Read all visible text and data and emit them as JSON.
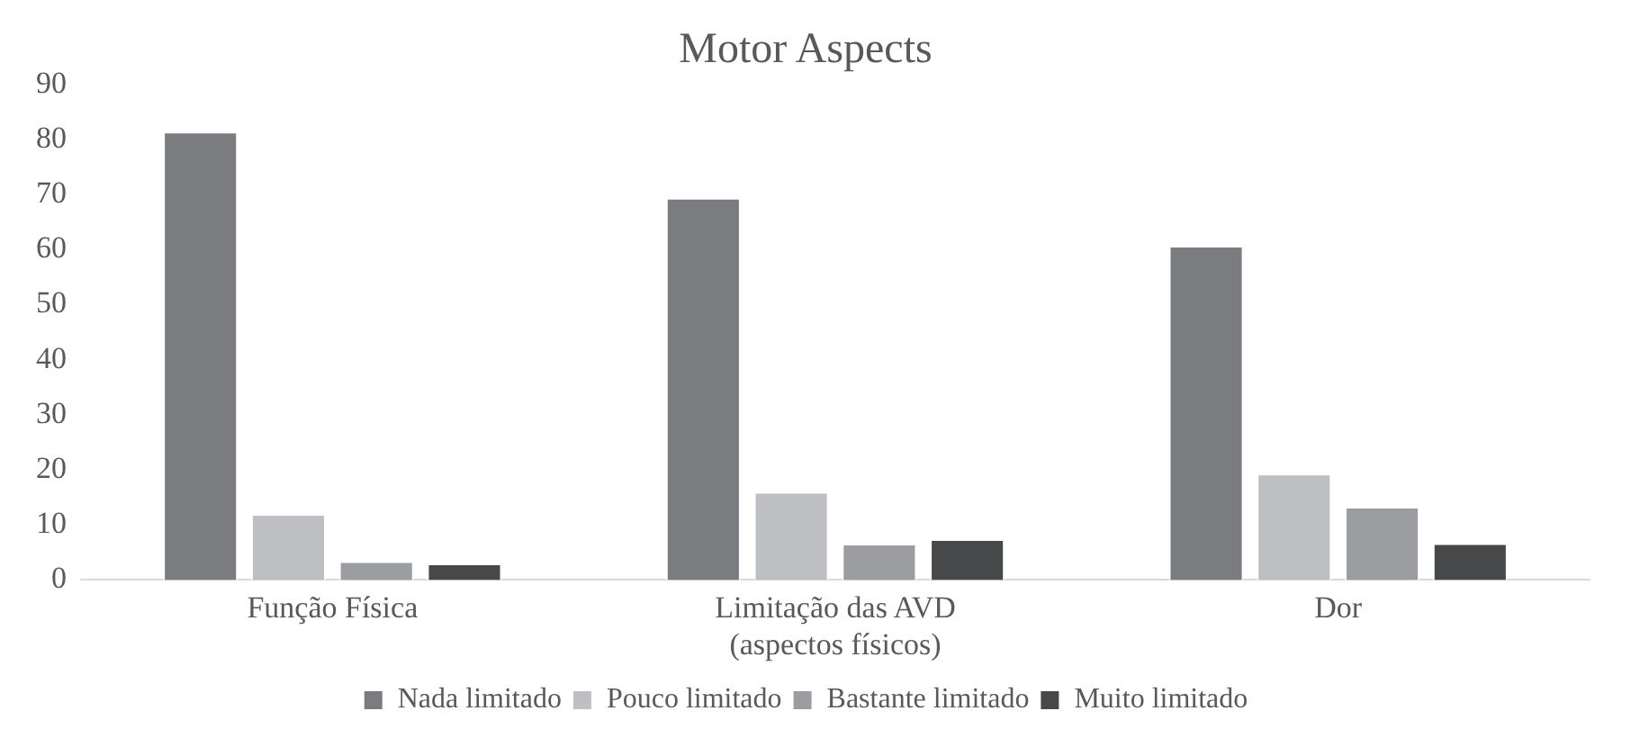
{
  "chart_data": {
    "type": "bar",
    "title": "Motor Aspects",
    "categories": [
      "Função Física",
      "Limitação das AVD\n(aspectos físicos)",
      "Dor"
    ],
    "series": [
      {
        "name": "Nada limitado",
        "color": "#7b7c80",
        "values": [
          81.4,
          69.4,
          60.7
        ]
      },
      {
        "name": "Pouco limitado",
        "color": "#bebfc3",
        "values": [
          12,
          16,
          19.3
        ]
      },
      {
        "name": "Bastante limitado",
        "color": "#9c9da1",
        "values": [
          3.4,
          6.6,
          13.3
        ]
      },
      {
        "name": "Muito limitado",
        "color": "#47484a",
        "values": [
          3,
          7.4,
          6.7
        ]
      }
    ],
    "ylim": [
      0,
      90
    ],
    "yticks": [
      0,
      10,
      20,
      30,
      40,
      50,
      60,
      70,
      80,
      90
    ],
    "grid": false,
    "legend": "bottom"
  }
}
